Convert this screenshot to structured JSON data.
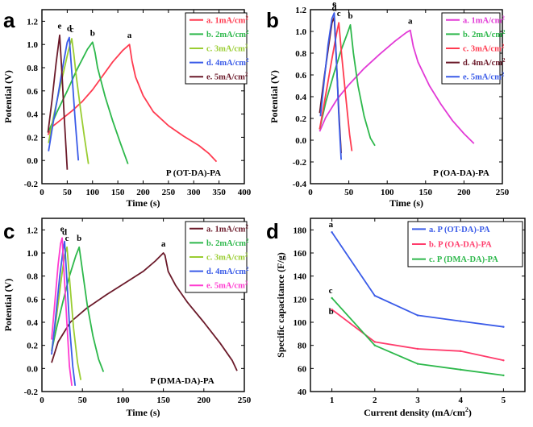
{
  "figure": {
    "panel_letters": [
      "a",
      "b",
      "c",
      "d"
    ]
  },
  "chart_data": [
    {
      "id": "a",
      "type": "line",
      "title": "",
      "panel_letter": "a",
      "material_label": "P (OT-DA)-PA",
      "xlabel": "Time (s)",
      "ylabel": "Potential (V)",
      "xlim": [
        0,
        400
      ],
      "ylim": [
        -0.2,
        1.3
      ],
      "xticks": [
        0,
        50,
        100,
        150,
        200,
        250,
        300,
        350,
        400
      ],
      "yticks": [
        -0.2,
        0.0,
        0.2,
        0.4,
        0.6,
        0.8,
        1.0,
        1.2
      ],
      "ytick_labels": [
        "-0.2",
        "0.0",
        "0.2",
        "0.4",
        "0.6",
        "0.8",
        "1.0",
        "1.2"
      ],
      "legend_position": "top-right",
      "series": [
        {
          "name": "a. 1mA/cm",
          "sup": "2",
          "color": "#ff3b50",
          "peak_label": "a",
          "x": [
            12,
            20,
            40,
            60,
            80,
            100,
            120,
            140,
            160,
            173,
            178,
            185,
            200,
            220,
            250,
            280,
            310,
            330,
            345
          ],
          "y": [
            0.22,
            0.29,
            0.36,
            0.43,
            0.51,
            0.61,
            0.73,
            0.85,
            0.95,
            1.0,
            0.86,
            0.72,
            0.56,
            0.42,
            0.3,
            0.21,
            0.13,
            0.06,
            -0.01
          ]
        },
        {
          "name": "b. 2mA/cm",
          "sup": "2",
          "color": "#2db84b",
          "peak_label": "b",
          "x": [
            14,
            30,
            50,
            70,
            90,
            100,
            105,
            110,
            125,
            140,
            155,
            170
          ],
          "y": [
            0.26,
            0.42,
            0.6,
            0.79,
            0.96,
            1.02,
            0.93,
            0.8,
            0.55,
            0.34,
            0.15,
            -0.03
          ]
        },
        {
          "name": "c. 3mA/cm",
          "sup": "2",
          "color": "#9acd32",
          "peak_label": "c",
          "x": [
            13,
            22,
            32,
            42,
            52,
            59,
            63,
            68,
            76,
            84,
            92
          ],
          "y": [
            0.15,
            0.36,
            0.56,
            0.75,
            0.94,
            1.05,
            0.92,
            0.72,
            0.45,
            0.2,
            -0.03
          ]
        },
        {
          "name": "d. 4mA/cm",
          "sup": "2",
          "color": "#3a5be8",
          "peak_label": "d",
          "x": [
            13,
            22,
            32,
            42,
            50,
            54,
            60,
            66,
            72
          ],
          "y": [
            0.08,
            0.32,
            0.57,
            0.83,
            1.02,
            1.06,
            0.7,
            0.33,
            0.0
          ]
        },
        {
          "name": "e. 5mA/cm",
          "sup": "2",
          "color": "#6b1a2a",
          "peak_label": "e",
          "x": [
            12,
            20,
            28,
            35,
            40,
            44,
            48,
            50
          ],
          "y": [
            0.24,
            0.52,
            0.84,
            1.08,
            0.72,
            0.38,
            0.08,
            -0.08
          ]
        }
      ]
    },
    {
      "id": "b",
      "type": "line",
      "title": "",
      "panel_letter": "b",
      "material_label": "P (OA-DA)-PA",
      "xlabel": "Time (s)",
      "ylabel": "Potential (V)",
      "xlim": [
        0,
        250
      ],
      "ylim": [
        -0.4,
        1.2
      ],
      "xticks": [
        0,
        50,
        100,
        150,
        200,
        250
      ],
      "yticks": [
        -0.4,
        -0.2,
        0.0,
        0.2,
        0.4,
        0.6,
        0.8,
        1.0,
        1.2
      ],
      "ytick_labels": [
        "-0.4",
        "-0.2",
        "0.0",
        "0.2",
        "0.4",
        "0.6",
        "0.8",
        "1.0",
        "1.2"
      ],
      "legend_position": "top-right",
      "series": [
        {
          "name": "a. 1mA/cm",
          "sup": "2",
          "color": "#e23ad6",
          "peak_label": "a",
          "x": [
            12,
            20,
            35,
            50,
            70,
            90,
            110,
            125,
            130,
            134,
            140,
            155,
            170,
            185,
            200,
            213
          ],
          "y": [
            0.08,
            0.21,
            0.38,
            0.51,
            0.66,
            0.79,
            0.91,
            0.99,
            1.01,
            0.86,
            0.72,
            0.5,
            0.33,
            0.18,
            0.06,
            -0.03
          ]
        },
        {
          "name": "b. 2mA/cm",
          "sup": "2",
          "color": "#2db84b",
          "peak_label": "b",
          "x": [
            12,
            20,
            30,
            40,
            48,
            52,
            56,
            62,
            70,
            78,
            84
          ],
          "y": [
            0.1,
            0.35,
            0.6,
            0.83,
            0.98,
            1.06,
            0.8,
            0.5,
            0.22,
            0.02,
            -0.05
          ]
        },
        {
          "name": "c. 3mA/cm",
          "sup": "2",
          "color": "#ff3b50",
          "peak_label": "c",
          "x": [
            12,
            20,
            28,
            34,
            37,
            41,
            46,
            51,
            54
          ],
          "y": [
            0.1,
            0.42,
            0.75,
            0.98,
            1.08,
            0.76,
            0.4,
            0.05,
            -0.1
          ]
        },
        {
          "name": "d. 4mA/cm",
          "sup": "2",
          "color": "#6b1a2a",
          "peak_label": "d",
          "x": [
            12,
            18,
            24,
            28,
            31,
            34,
            37,
            40
          ],
          "y": [
            0.25,
            0.58,
            0.88,
            1.08,
            1.13,
            0.7,
            0.26,
            -0.12
          ]
        },
        {
          "name": "e. 5mA/cm",
          "sup": "2",
          "color": "#3a5be8",
          "peak_label": "e",
          "x": [
            13,
            18,
            23,
            28,
            31,
            34,
            37,
            40
          ],
          "y": [
            0.22,
            0.55,
            0.88,
            1.12,
            1.17,
            0.7,
            0.22,
            -0.18
          ]
        }
      ]
    },
    {
      "id": "c",
      "type": "line",
      "title": "",
      "panel_letter": "c",
      "material_label": "P (DMA-DA)-PA",
      "xlabel": "Time (s)",
      "ylabel": "Potential (V)",
      "xlim": [
        0,
        250
      ],
      "ylim": [
        -0.2,
        1.3
      ],
      "xticks": [
        0,
        50,
        100,
        150,
        200,
        250
      ],
      "yticks": [
        -0.2,
        0.0,
        0.2,
        0.4,
        0.6,
        0.8,
        1.0,
        1.2
      ],
      "ytick_labels": [
        "-0.2",
        "0.0",
        "0.2",
        "0.4",
        "0.6",
        "0.8",
        "1.0",
        "1.2"
      ],
      "legend_position": "top-right",
      "series": [
        {
          "name": "a. 1mA/cm",
          "sup": "2",
          "color": "#6b1a2a",
          "peak_label": "a",
          "x": [
            12,
            20,
            35,
            55,
            80,
            105,
            125,
            140,
            150,
            152,
            156,
            165,
            180,
            200,
            220,
            235,
            241
          ],
          "y": [
            0.05,
            0.23,
            0.4,
            0.52,
            0.64,
            0.75,
            0.84,
            0.93,
            1.0,
            0.98,
            0.84,
            0.72,
            0.57,
            0.4,
            0.22,
            0.07,
            -0.02
          ]
        },
        {
          "name": "b. 2mA/cm",
          "sup": "2",
          "color": "#2db84b",
          "peak_label": "b",
          "x": [
            12,
            18,
            26,
            34,
            42,
            46,
            50,
            56,
            63,
            70,
            76
          ],
          "y": [
            0.15,
            0.35,
            0.58,
            0.8,
            0.98,
            1.05,
            0.85,
            0.55,
            0.28,
            0.08,
            -0.03
          ]
        },
        {
          "name": "c. 3mA/cm",
          "sup": "2",
          "color": "#9acd32",
          "peak_label": "c",
          "x": [
            12,
            18,
            24,
            28,
            31,
            35,
            39,
            44,
            48
          ],
          "y": [
            0.15,
            0.45,
            0.78,
            0.98,
            1.05,
            0.7,
            0.35,
            0.05,
            -0.1
          ]
        },
        {
          "name": "d. 4mA/cm",
          "sup": "2",
          "color": "#3a5be8",
          "peak_label": "d",
          "x": [
            12,
            17,
            22,
            26,
            28,
            31,
            34,
            38,
            41
          ],
          "y": [
            0.12,
            0.45,
            0.8,
            1.02,
            1.1,
            0.75,
            0.38,
            0.02,
            -0.15
          ]
        },
        {
          "name": "e. 5mA/cm",
          "sup": "2",
          "color": "#ff3bd0",
          "peak_label": "e",
          "x": [
            12,
            16,
            20,
            23,
            25,
            28,
            31,
            34,
            37
          ],
          "y": [
            0.25,
            0.58,
            0.9,
            1.08,
            1.13,
            0.75,
            0.38,
            0.02,
            -0.15
          ]
        }
      ]
    },
    {
      "id": "d",
      "type": "line",
      "title": "",
      "panel_letter": "d",
      "xlabel": "Current density (mA/cm",
      "xlabel_sup": "2",
      "xlabel_tail": ")",
      "ylabel": "Specific capacitance (F/g)",
      "xlim": [
        0.5,
        5.5
      ],
      "ylim": [
        40,
        190
      ],
      "xticks": [
        1,
        2,
        3,
        4,
        5
      ],
      "yticks": [
        40,
        60,
        80,
        100,
        120,
        140,
        160,
        180
      ],
      "ytick_labels": [
        "40",
        "60",
        "80",
        "100",
        "120",
        "140",
        "160",
        "180"
      ],
      "legend_position": "top-right",
      "series": [
        {
          "name": "a. P (OT-DA)-PA",
          "color": "#3a5be8",
          "start_label": "a",
          "x": [
            1,
            2,
            3,
            4,
            5
          ],
          "y": [
            178,
            123,
            106,
            101,
            96
          ]
        },
        {
          "name": "b. P (OA-DA)-PA",
          "color": "#ff3b6b",
          "start_label": "b",
          "x": [
            1,
            2,
            3,
            4,
            5
          ],
          "y": [
            111,
            83,
            77,
            75,
            67
          ]
        },
        {
          "name": "c. P (DMA-DA)-PA",
          "color": "#2db84b",
          "start_label": "c",
          "x": [
            1,
            2,
            3,
            4,
            5
          ],
          "y": [
            121,
            80,
            64,
            59,
            54
          ]
        }
      ]
    }
  ]
}
